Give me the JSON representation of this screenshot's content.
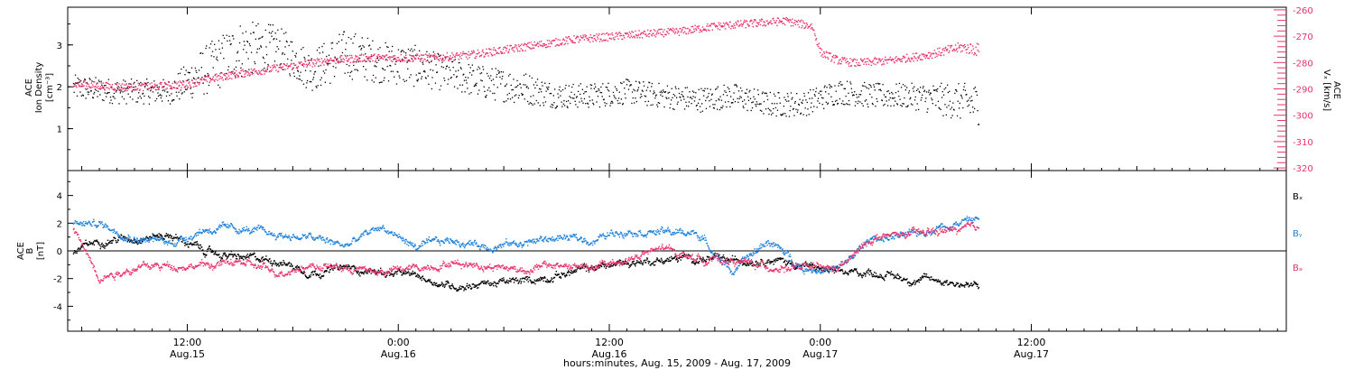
{
  "colors": {
    "density": "#000000",
    "velocity": "#e8336b",
    "bx": "#000000",
    "by": "#1e82dc",
    "bz": "#e8336b",
    "axis": "#000000"
  },
  "xaxis": {
    "title": "hours:minutes, Aug. 15, 2009 - Aug. 17, 2009",
    "range_hours": [
      5.2,
      74.5
    ],
    "ticks": [
      {
        "hour": 12,
        "time": "12:00",
        "date": "Aug.15"
      },
      {
        "hour": 24,
        "time": "0:00",
        "date": "Aug.16"
      },
      {
        "hour": 36,
        "time": "12:00",
        "date": "Aug.16"
      },
      {
        "hour": 48,
        "time": "0:00",
        "date": "Aug.17"
      },
      {
        "hour": 60,
        "time": "12:00",
        "date": "Aug.17"
      }
    ]
  },
  "top_panel": {
    "left_label": {
      "line1": "ACE",
      "line2": "Ion Density",
      "line3": "[cm⁻³]"
    },
    "right_label": {
      "line1": "ACE",
      "line2": "Vₓ [km/s]"
    },
    "left_ticks": [
      1,
      2,
      3
    ],
    "right_ticks": [
      -260,
      -270,
      -280,
      -290,
      -300,
      -310,
      -320
    ]
  },
  "bottom_panel": {
    "left_label": {
      "line1": "ACE",
      "line2": "B",
      "line3": "[nT]"
    },
    "ticks": [
      -4,
      -2,
      0,
      2,
      4
    ],
    "legend": [
      {
        "label": "Bₓ",
        "key": "bx"
      },
      {
        "label": "Bᵧ",
        "key": "by"
      },
      {
        "label": "Bₔ",
        "key": "bz"
      }
    ]
  },
  "chart_data": [
    {
      "type": "scatter",
      "name": "ACE Ion Density",
      "ylabel": "Ion Density [cm^-3]",
      "ylim": [
        0,
        3.9
      ],
      "x_hours": [
        5.5,
        8,
        11,
        13,
        15,
        17,
        19,
        21,
        23,
        25,
        27,
        29,
        31,
        33,
        35,
        37,
        39,
        41,
        43,
        45,
        47,
        49,
        51,
        53,
        55,
        57
      ],
      "values": [
        2.0,
        1.9,
        1.9,
        2.4,
        2.9,
        3.0,
        2.4,
        2.8,
        2.6,
        2.5,
        2.3,
        2.1,
        2.0,
        1.8,
        1.8,
        1.9,
        1.8,
        1.7,
        1.8,
        1.6,
        1.6,
        1.9,
        1.8,
        1.8,
        1.7,
        1.6
      ],
      "spread": [
        0.3,
        0.3,
        0.3,
        0.6,
        0.7,
        0.5,
        0.5,
        0.6,
        0.5,
        0.5,
        0.4,
        0.4,
        0.4,
        0.3,
        0.3,
        0.3,
        0.3,
        0.3,
        0.3,
        0.3,
        0.3,
        0.3,
        0.3,
        0.3,
        0.4,
        0.5
      ]
    },
    {
      "type": "scatter",
      "name": "ACE Vx",
      "ylabel": "Vx [km/s]",
      "ylim": [
        -321,
        -259
      ],
      "x_hours": [
        5.5,
        8,
        10,
        12,
        14,
        16,
        18,
        20,
        22,
        24,
        26,
        28,
        30,
        32,
        34,
        36,
        38,
        40,
        42,
        44,
        46,
        47.5,
        48,
        49,
        50,
        52,
        54,
        56,
        57
      ],
      "values": [
        -288,
        -289,
        -289,
        -288,
        -285,
        -283,
        -281,
        -279,
        -278,
        -278,
        -278,
        -277,
        -275,
        -273,
        -271,
        -270,
        -269,
        -268,
        -266,
        -265,
        -264,
        -266,
        -276,
        -279,
        -280,
        -279,
        -277,
        -274,
        -275
      ],
      "spread": [
        1.5,
        1.5,
        1.5,
        1.5,
        1.5,
        1.5,
        1.5,
        1.5,
        1.5,
        1.5,
        1.5,
        1.5,
        1.5,
        1.5,
        1.5,
        1.5,
        1.5,
        1.5,
        1.5,
        1.5,
        1.5,
        1.5,
        1.5,
        1.5,
        1.5,
        1.5,
        1.5,
        2.0,
        2.5
      ]
    },
    {
      "type": "line",
      "name": "ACE B",
      "ylabel": "B [nT]",
      "ylim": [
        -5.8,
        5.8
      ],
      "x_hours": [
        5.5,
        7,
        9,
        11,
        13,
        15,
        17,
        19,
        21,
        23,
        25,
        27,
        29,
        31,
        33,
        35,
        37,
        39,
        41,
        43,
        45,
        47,
        49,
        51,
        53,
        55,
        57
      ],
      "series": [
        {
          "name": "Bx",
          "key": "bx",
          "values": [
            0.0,
            0.8,
            1.0,
            1.2,
            0.0,
            -0.5,
            -0.6,
            -1.5,
            -1.2,
            -1.5,
            -1.8,
            -2.5,
            -2.3,
            -2.2,
            -1.7,
            -1.2,
            -0.8,
            -0.6,
            -0.5,
            -0.7,
            -0.5,
            -1.0,
            -1.6,
            -1.5,
            -2.0,
            -2.1,
            -2.6
          ]
        },
        {
          "name": "By",
          "key": "by",
          "values": [
            2.0,
            2.0,
            1.0,
            0.6,
            1.6,
            1.6,
            1.2,
            1.0,
            0.4,
            1.8,
            0.3,
            0.8,
            0.4,
            0.6,
            1.0,
            0.8,
            1.6,
            1.4,
            1.3,
            -1.5,
            0.8,
            -1.2,
            -1.3,
            1.0,
            1.1,
            1.9,
            2.4
          ]
        },
        {
          "name": "Bz",
          "key": "bz",
          "values": [
            1.5,
            -1.8,
            -1.2,
            -1.0,
            -1.0,
            -0.8,
            -1.5,
            -1.0,
            -1.2,
            -1.5,
            -1.2,
            -0.8,
            -1.0,
            -1.3,
            -1.0,
            -1.2,
            -0.6,
            0.2,
            -0.5,
            -0.7,
            -1.1,
            -1.2,
            -1.3,
            1.0,
            1.2,
            1.5,
            1.6
          ]
        }
      ]
    }
  ]
}
